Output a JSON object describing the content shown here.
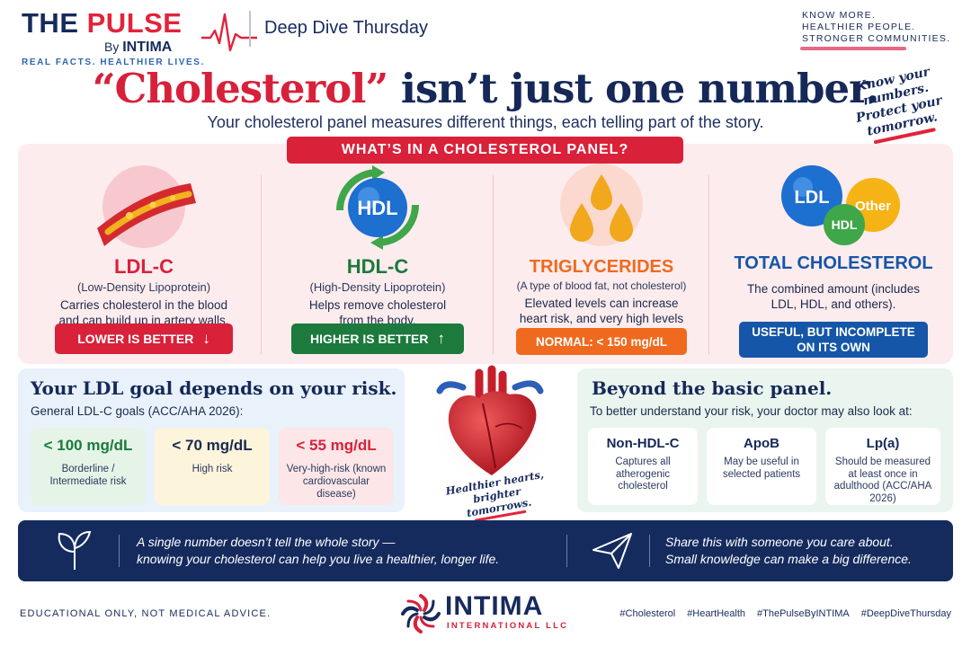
{
  "brand": {
    "name_part1": "THE ",
    "name_part2": "PULSE",
    "by": "By ",
    "by_name": "INTIMA",
    "tagline": "REAL FACTS. HEALTHIER LIVES.",
    "series": "Deep Dive Thursday"
  },
  "motto": [
    "KNOW MORE.",
    "HEALTHIER PEOPLE.",
    "STRONGER COMMUNITIES."
  ],
  "headline": {
    "quoted": "“Cholesterol”",
    "rest": " isn’t just one number.",
    "subtitle": "Your cholesterol panel measures different things, each telling part of the story."
  },
  "hand_note": "Know your numbers. Protect your tomorrow.",
  "panel": {
    "title": "WHAT’S IN A CHOLESTEROL PANEL?",
    "columns": [
      {
        "title": "LDL-C",
        "subtitle": "(Low-Density Lipoprotein)",
        "description": "Carries cholesterol in the blood and can build up in artery walls.",
        "pill": "LOWER IS BETTER",
        "color": "#d9213a"
      },
      {
        "title": "HDL-C",
        "subtitle": "(High-Density Lipoprotein)",
        "description": "Helps remove cholesterol from the body.",
        "pill": "HIGHER IS BETTER",
        "color": "#1b7a3c",
        "icon_label": "HDL"
      },
      {
        "title": "TRIGLYCERIDES",
        "subtitle": "(A type of blood fat, not cholesterol)",
        "description": "Elevated levels can increase heart risk, and very high levels can cause pancreatitis.",
        "pill": "NORMAL: < 150 mg/dL",
        "color": "#ef6a1f"
      },
      {
        "title": "TOTAL CHOLESTEROL",
        "subtitle": "",
        "description": "The combined amount (includes LDL, HDL, and others).",
        "pill": "USEFUL, BUT INCOMPLETE ON ITS OWN",
        "color": "#1556a8",
        "icon_labels": [
          "LDL",
          "HDL",
          "Other"
        ]
      }
    ]
  },
  "ldl_goals": {
    "title": "Your LDL goal depends on your risk.",
    "subtitle": "General LDL-C goals (ACC/AHA 2026):",
    "cards": [
      {
        "value": "< 100 mg/dL",
        "note": "Borderline / Intermediate risk",
        "color": "#1b7a3c",
        "bg": "#e6f4e8"
      },
      {
        "value": "< 70 mg/dL",
        "note": "High risk",
        "color": "#1b2a4e",
        "bg": "#fdf4dc"
      },
      {
        "value": "< 55 mg/dL",
        "note": "Very-high-risk (known cardiovascular disease)",
        "color": "#d9213a",
        "bg": "#fce6e8"
      }
    ]
  },
  "heart": {
    "caption": "Healthier hearts, brighter tomorrows."
  },
  "beyond": {
    "title": "Beyond the basic panel.",
    "subtitle": "To better understand your risk, your doctor may also look at:",
    "cards": [
      {
        "title": "Non-HDL-C",
        "note": "Captures all atherogenic cholesterol"
      },
      {
        "title": "ApoB",
        "note": "May be useful in selected patients"
      },
      {
        "title": "Lp(a)",
        "note": "Should be measured at least once in adulthood (ACC/AHA 2026)"
      }
    ]
  },
  "banner": {
    "left_line1": "A single number doesn’t tell the whole story —",
    "left_line2": "knowing your cholesterol can help you live a healthier, longer life.",
    "right_line1": "Share this with someone you care about.",
    "right_line2": "Small knowledge can make a big difference."
  },
  "footer": {
    "disclaimer": "EDUCATIONAL ONLY, NOT MEDICAL ADVICE.",
    "company_name": "INTIMA",
    "company_sub": "INTERNATIONAL LLC",
    "hashtags": [
      "#Cholesterol",
      "#HeartHealth",
      "#ThePulseByINTIMA",
      "#DeepDiveThursday"
    ]
  },
  "colors": {
    "navy": "#152b5e",
    "red": "#d9213a",
    "green": "#1b7a3c",
    "orange": "#ef6a1f",
    "blue": "#1556a8"
  }
}
